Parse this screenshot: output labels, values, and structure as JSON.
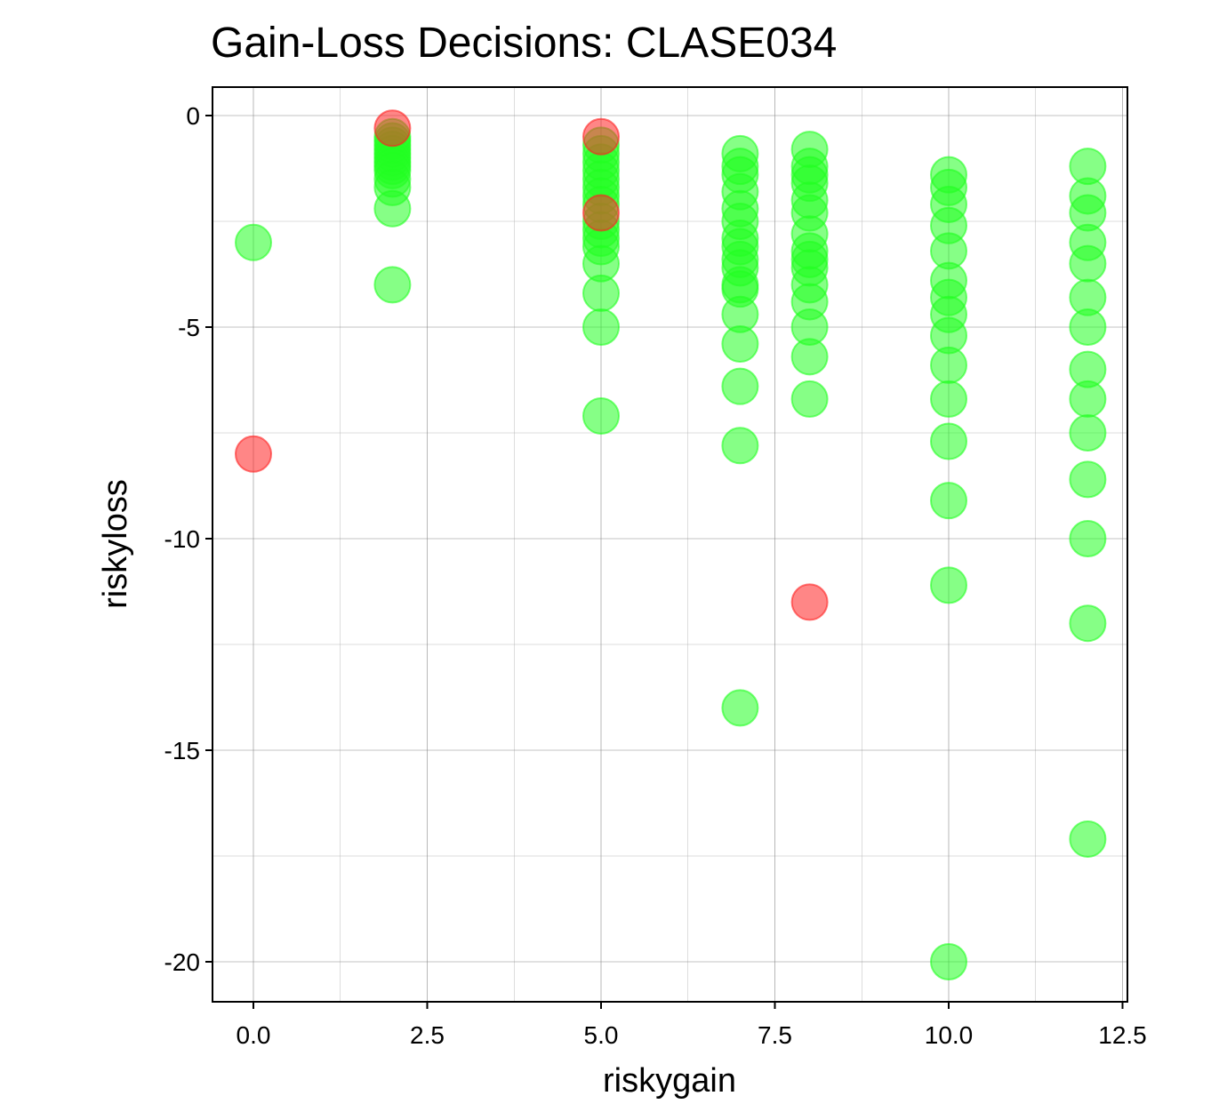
{
  "chart_data": {
    "type": "scatter",
    "title": "Gain-Loss Decisions: CLASE034",
    "xlabel": "riskygain",
    "ylabel": "riskyloss",
    "xlim": [
      -0.6,
      12.6
    ],
    "ylim": [
      -21,
      0.7
    ],
    "x_ticks": [
      0.0,
      2.5,
      5.0,
      7.5,
      10.0,
      12.5
    ],
    "x_tick_labels": [
      "0.0",
      "2.5",
      "5.0",
      "7.5",
      "10.0",
      "12.5"
    ],
    "y_ticks": [
      0,
      -5,
      -10,
      -15,
      -20
    ],
    "y_tick_labels": [
      "0",
      "-5",
      "-10",
      "-15",
      "-20"
    ],
    "x_minor_ticks": [
      1.25,
      3.75,
      6.25,
      8.75,
      11.25
    ],
    "y_minor_ticks": [
      -2.5,
      -7.5,
      -12.5,
      -17.5
    ],
    "grid": true,
    "colors": {
      "green": "#22ff22",
      "red": "#ff2222"
    },
    "series": [
      {
        "color": "green",
        "points": [
          [
            0,
            -3.0
          ],
          [
            2,
            -0.5
          ],
          [
            2,
            -0.6
          ],
          [
            2,
            -0.7
          ],
          [
            2,
            -0.8
          ],
          [
            2,
            -0.9
          ],
          [
            2,
            -1.0
          ],
          [
            2,
            -1.1
          ],
          [
            2,
            -1.2
          ],
          [
            2,
            -1.3
          ],
          [
            2,
            -1.5
          ],
          [
            2,
            -1.7
          ],
          [
            2,
            -2.2
          ],
          [
            2,
            -4.0
          ],
          [
            5,
            -0.7
          ],
          [
            5,
            -0.9
          ],
          [
            5,
            -1.1
          ],
          [
            5,
            -1.3
          ],
          [
            5,
            -1.5
          ],
          [
            5,
            -1.7
          ],
          [
            5,
            -1.9
          ],
          [
            5,
            -2.1
          ],
          [
            5,
            -2.5
          ],
          [
            5,
            -2.7
          ],
          [
            5,
            -2.9
          ],
          [
            5,
            -3.1
          ],
          [
            5,
            -3.5
          ],
          [
            5,
            -4.2
          ],
          [
            5,
            -5.0
          ],
          [
            5,
            -7.1
          ],
          [
            7,
            -0.9
          ],
          [
            7,
            -1.2
          ],
          [
            7,
            -1.4
          ],
          [
            7,
            -1.8
          ],
          [
            7,
            -2.2
          ],
          [
            7,
            -2.5
          ],
          [
            7,
            -2.9
          ],
          [
            7,
            -3.1
          ],
          [
            7,
            -3.4
          ],
          [
            7,
            -3.6
          ],
          [
            7,
            -4.0
          ],
          [
            7,
            -4.1
          ],
          [
            7,
            -4.7
          ],
          [
            7,
            -5.4
          ],
          [
            7,
            -6.4
          ],
          [
            7,
            -7.8
          ],
          [
            7,
            -14.0
          ],
          [
            8,
            -0.8
          ],
          [
            8,
            -1.2
          ],
          [
            8,
            -1.4
          ],
          [
            8,
            -1.6
          ],
          [
            8,
            -2.0
          ],
          [
            8,
            -2.3
          ],
          [
            8,
            -2.8
          ],
          [
            8,
            -3.2
          ],
          [
            8,
            -3.4
          ],
          [
            8,
            -3.6
          ],
          [
            8,
            -4.0
          ],
          [
            8,
            -4.4
          ],
          [
            8,
            -5.0
          ],
          [
            8,
            -5.7
          ],
          [
            8,
            -6.7
          ],
          [
            10,
            -1.4
          ],
          [
            10,
            -1.7
          ],
          [
            10,
            -2.1
          ],
          [
            10,
            -2.6
          ],
          [
            10,
            -3.2
          ],
          [
            10,
            -3.9
          ],
          [
            10,
            -4.3
          ],
          [
            10,
            -4.7
          ],
          [
            10,
            -5.2
          ],
          [
            10,
            -5.9
          ],
          [
            10,
            -6.7
          ],
          [
            10,
            -7.7
          ],
          [
            10,
            -9.1
          ],
          [
            10,
            -11.1
          ],
          [
            10,
            -20.0
          ],
          [
            12,
            -1.2
          ],
          [
            12,
            -1.9
          ],
          [
            12,
            -2.3
          ],
          [
            12,
            -3.0
          ],
          [
            12,
            -3.5
          ],
          [
            12,
            -4.3
          ],
          [
            12,
            -5.0
          ],
          [
            12,
            -6.0
          ],
          [
            12,
            -6.7
          ],
          [
            12,
            -7.5
          ],
          [
            12,
            -8.6
          ],
          [
            12,
            -10.0
          ],
          [
            12,
            -12.0
          ],
          [
            12,
            -17.1
          ]
        ]
      },
      {
        "color": "red",
        "points": [
          [
            0,
            -8.0
          ],
          [
            2,
            -0.3
          ],
          [
            5,
            -0.5
          ],
          [
            5,
            -2.3
          ],
          [
            8,
            -11.5
          ]
        ]
      }
    ]
  }
}
